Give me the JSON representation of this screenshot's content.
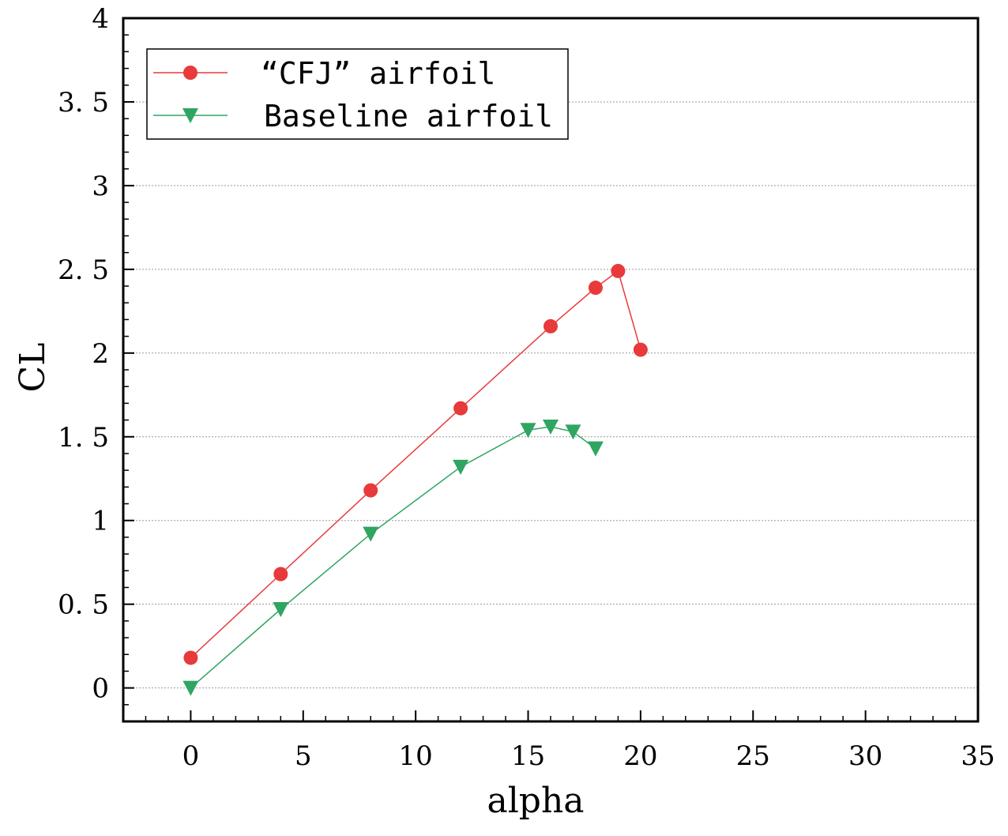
{
  "chart_data": {
    "type": "line",
    "xlabel": "alpha",
    "ylabel": "CL",
    "xlim": [
      -3,
      35
    ],
    "ylim": [
      -0.2,
      4
    ],
    "x_ticks": [
      0,
      5,
      10,
      15,
      20,
      25,
      30,
      35
    ],
    "y_ticks": [
      0,
      0.5,
      1,
      1.5,
      2,
      2.5,
      3,
      3.5,
      4
    ],
    "x_tick_labels": [
      "0",
      "5",
      "10",
      "15",
      "20",
      "25",
      "30",
      "35"
    ],
    "y_tick_labels": [
      "0",
      "0. 5",
      "1",
      "1. 5",
      "2",
      "2. 5",
      "3",
      "3. 5",
      "4"
    ],
    "grid": "horizontal dotted",
    "legend_position": "top-left",
    "series": [
      {
        "name": "“CFJ” airfoil",
        "color": "#e83a3a",
        "marker": "circle",
        "x": [
          0,
          4,
          8,
          12,
          16,
          18,
          19,
          20
        ],
        "y": [
          0.18,
          0.68,
          1.18,
          1.67,
          2.16,
          2.39,
          2.49,
          2.02
        ]
      },
      {
        "name": "Baseline airfoil",
        "color": "#2fa562",
        "marker": "triangle-down",
        "x": [
          0,
          4,
          8,
          12,
          15,
          16,
          17,
          18
        ],
        "y": [
          0.0,
          0.47,
          0.92,
          1.32,
          1.54,
          1.56,
          1.53,
          1.43
        ]
      }
    ]
  }
}
